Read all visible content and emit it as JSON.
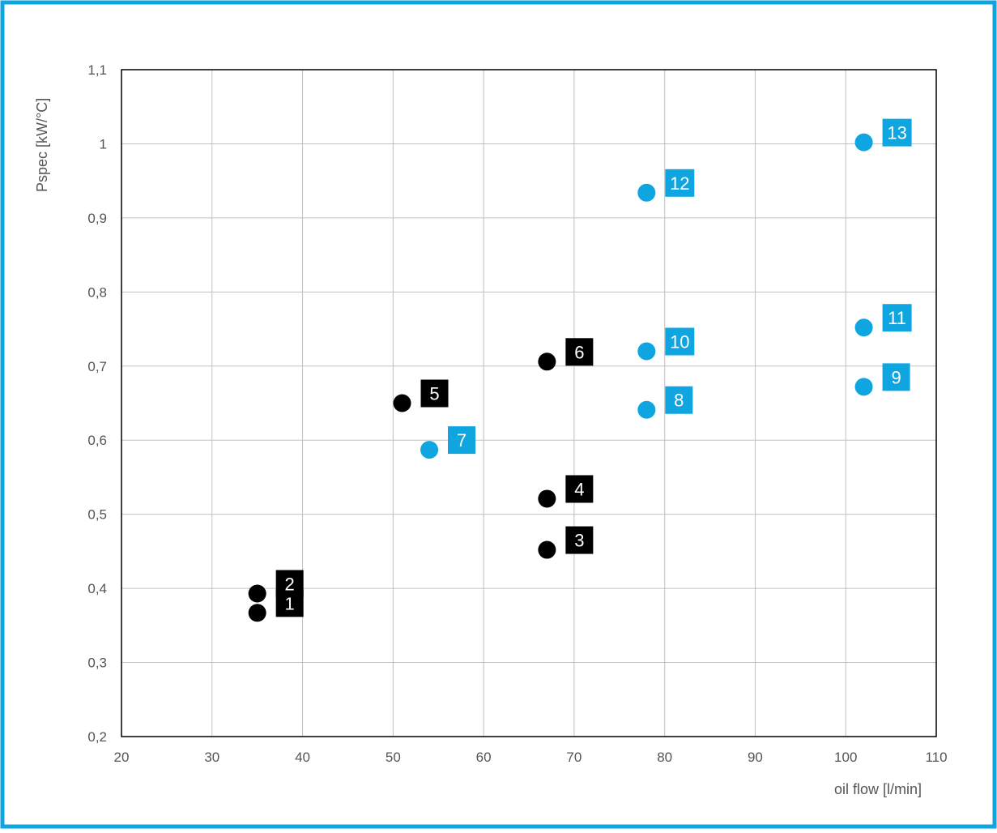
{
  "chart_data": {
    "type": "scatter",
    "title": "",
    "xlabel": "oil flow [l/min]",
    "ylabel": "Pspec [kW/°C]",
    "xlim": [
      20,
      110
    ],
    "ylim": [
      0.2,
      1.1
    ],
    "grid": true,
    "x_ticks": [
      20,
      30,
      40,
      50,
      60,
      70,
      80,
      90,
      100,
      110
    ],
    "x_tick_labels": [
      "20",
      "30",
      "40",
      "50",
      "60",
      "70",
      "80",
      "90",
      "100",
      "110"
    ],
    "y_ticks": [
      0.2,
      0.3,
      0.4,
      0.5,
      0.6,
      0.7,
      0.8,
      0.9,
      1.0,
      1.1
    ],
    "y_tick_labels": [
      "0,2",
      "0,3",
      "0,4",
      "0,5",
      "0,6",
      "0,7",
      "0,8",
      "0,9",
      "1",
      "1,1"
    ],
    "colors": {
      "black": "#000000",
      "blue": "#0ea5e0",
      "frame": "#0ea5e0",
      "grid": "#c0c0c0"
    },
    "points": [
      {
        "label": "1",
        "x": 35,
        "y": 0.367,
        "color": "black"
      },
      {
        "label": "2",
        "x": 35,
        "y": 0.393,
        "color": "black"
      },
      {
        "label": "3",
        "x": 67,
        "y": 0.452,
        "color": "black"
      },
      {
        "label": "4",
        "x": 67,
        "y": 0.521,
        "color": "black"
      },
      {
        "label": "5",
        "x": 51,
        "y": 0.65,
        "color": "black"
      },
      {
        "label": "6",
        "x": 67,
        "y": 0.706,
        "color": "black"
      },
      {
        "label": "7",
        "x": 54,
        "y": 0.587,
        "color": "blue"
      },
      {
        "label": "8",
        "x": 78,
        "y": 0.641,
        "color": "blue"
      },
      {
        "label": "9",
        "x": 102,
        "y": 0.672,
        "color": "blue"
      },
      {
        "label": "10",
        "x": 78,
        "y": 0.72,
        "color": "blue"
      },
      {
        "label": "11",
        "x": 102,
        "y": 0.752,
        "color": "blue"
      },
      {
        "label": "12",
        "x": 78,
        "y": 0.934,
        "color": "blue"
      },
      {
        "label": "13",
        "x": 102,
        "y": 1.002,
        "color": "blue"
      }
    ]
  }
}
